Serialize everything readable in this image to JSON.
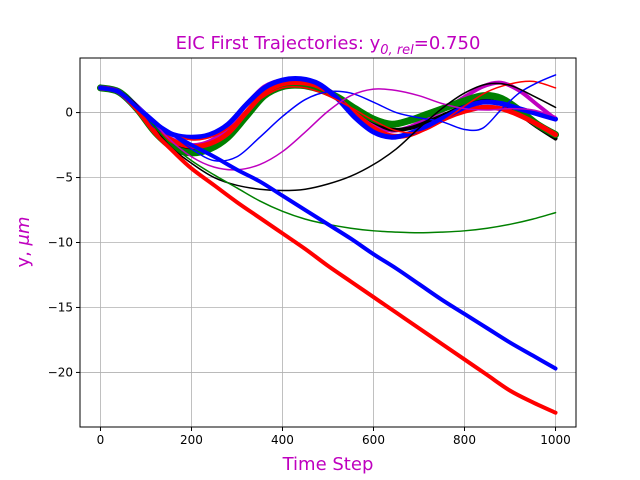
{
  "chart_data": {
    "type": "line",
    "title": "EIC First Trajectories: y",
    "title_subscript": "0, rel",
    "title_value": "=0.750",
    "xlabel": "Time Step",
    "ylabel_var": "y, ",
    "ylabel_unit": "μm",
    "label_color": "#bf00bf",
    "xlim": [
      -45,
      1045
    ],
    "ylim": [
      -24.2,
      4.2
    ],
    "xticks": [
      0,
      200,
      400,
      600,
      800,
      1000
    ],
    "yticks": [
      -20,
      -15,
      -10,
      -5,
      0
    ],
    "xtick_labels": [
      "0",
      "200",
      "400",
      "600",
      "800",
      "1000"
    ],
    "ytick_labels": [
      "−20",
      "−15",
      "−10",
      "−5",
      "0"
    ],
    "grid": true,
    "series": [
      {
        "color": "#bf00bf",
        "width": 4,
        "points": [
          [
            0,
            1.9
          ],
          [
            40,
            1.6
          ],
          [
            80,
            0.3
          ],
          [
            120,
            -1.2
          ],
          [
            160,
            -2.1
          ],
          [
            200,
            -2.5
          ],
          [
            240,
            -2.2
          ],
          [
            280,
            -1.2
          ],
          [
            320,
            0.6
          ],
          [
            360,
            2.0
          ],
          [
            400,
            2.5
          ],
          [
            440,
            2.6
          ],
          [
            480,
            2.2
          ],
          [
            520,
            1.2
          ],
          [
            560,
            0.0
          ],
          [
            600,
            -1.0
          ],
          [
            640,
            -1.4
          ],
          [
            680,
            -1.1
          ],
          [
            720,
            -0.4
          ],
          [
            760,
            0.3
          ],
          [
            800,
            1.2
          ],
          [
            840,
            2.0
          ],
          [
            880,
            2.3
          ],
          [
            920,
            1.7
          ],
          [
            960,
            0.6
          ],
          [
            1000,
            -0.5
          ]
        ]
      },
      {
        "color": "#000000",
        "width": 4,
        "points": [
          [
            0,
            1.9
          ],
          [
            40,
            1.6
          ],
          [
            80,
            0.3
          ],
          [
            120,
            -1.3
          ],
          [
            160,
            -2.3
          ],
          [
            200,
            -2.8
          ],
          [
            240,
            -2.6
          ],
          [
            280,
            -1.8
          ],
          [
            320,
            -0.2
          ],
          [
            360,
            1.4
          ],
          [
            400,
            2.2
          ],
          [
            440,
            2.4
          ],
          [
            480,
            2.1
          ],
          [
            520,
            1.3
          ],
          [
            560,
            0.3
          ],
          [
            600,
            -0.7
          ],
          [
            640,
            -1.3
          ],
          [
            680,
            -1.2
          ],
          [
            720,
            -0.7
          ],
          [
            760,
            -0.1
          ],
          [
            800,
            0.5
          ],
          [
            840,
            0.9
          ],
          [
            880,
            0.7
          ],
          [
            920,
            -0.1
          ],
          [
            960,
            -1.1
          ],
          [
            1000,
            -2.0
          ]
        ]
      },
      {
        "color": "#008000",
        "width": 7,
        "points": [
          [
            0,
            1.9
          ],
          [
            40,
            1.6
          ],
          [
            80,
            0.3
          ],
          [
            120,
            -1.5
          ],
          [
            160,
            -2.7
          ],
          [
            200,
            -3.1
          ],
          [
            240,
            -2.8
          ],
          [
            280,
            -1.9
          ],
          [
            320,
            -0.3
          ],
          [
            360,
            1.3
          ],
          [
            400,
            2.0
          ],
          [
            440,
            2.1
          ],
          [
            480,
            1.8
          ],
          [
            520,
            1.2
          ],
          [
            560,
            0.3
          ],
          [
            600,
            -0.5
          ],
          [
            640,
            -0.9
          ],
          [
            680,
            -0.6
          ],
          [
            720,
            -0.1
          ],
          [
            760,
            0.4
          ],
          [
            800,
            0.9
          ],
          [
            840,
            1.3
          ],
          [
            880,
            1.1
          ],
          [
            920,
            0.2
          ],
          [
            960,
            -0.9
          ],
          [
            1000,
            -1.7
          ]
        ]
      },
      {
        "color": "#ff0000",
        "width": 5,
        "points": [
          [
            0,
            1.9
          ],
          [
            40,
            1.6
          ],
          [
            80,
            0.3
          ],
          [
            120,
            -1.2
          ],
          [
            160,
            -2.2
          ],
          [
            200,
            -2.6
          ],
          [
            240,
            -2.4
          ],
          [
            280,
            -1.6
          ],
          [
            320,
            0.0
          ],
          [
            360,
            1.5
          ],
          [
            400,
            2.2
          ],
          [
            440,
            2.3
          ],
          [
            480,
            2.0
          ],
          [
            520,
            1.1
          ],
          [
            560,
            -0.1
          ],
          [
            600,
            -1.2
          ],
          [
            640,
            -1.8
          ],
          [
            680,
            -1.7
          ],
          [
            720,
            -1.1
          ],
          [
            760,
            -0.4
          ],
          [
            800,
            0.1
          ],
          [
            840,
            0.4
          ],
          [
            880,
            0.3
          ],
          [
            920,
            -0.2
          ],
          [
            960,
            -0.9
          ],
          [
            1000,
            -1.7
          ]
        ]
      },
      {
        "color": "#0000ff",
        "width": 5,
        "points": [
          [
            0,
            1.9
          ],
          [
            40,
            1.6
          ],
          [
            80,
            0.3
          ],
          [
            120,
            -1.0
          ],
          [
            160,
            -1.7
          ],
          [
            200,
            -1.9
          ],
          [
            240,
            -1.7
          ],
          [
            280,
            -0.9
          ],
          [
            320,
            0.6
          ],
          [
            360,
            1.9
          ],
          [
            400,
            2.5
          ],
          [
            440,
            2.6
          ],
          [
            480,
            2.2
          ],
          [
            520,
            1.1
          ],
          [
            560,
            -0.4
          ],
          [
            600,
            -1.5
          ],
          [
            640,
            -1.9
          ],
          [
            680,
            -1.6
          ],
          [
            720,
            -1.0
          ],
          [
            760,
            -0.3
          ],
          [
            800,
            0.4
          ],
          [
            840,
            0.8
          ],
          [
            880,
            0.7
          ],
          [
            920,
            0.3
          ],
          [
            960,
            -0.1
          ],
          [
            1000,
            -0.5
          ]
        ]
      },
      {
        "color": "#ff0000",
        "width": 1.5,
        "points": [
          [
            0,
            1.9
          ],
          [
            50,
            1.5
          ],
          [
            100,
            -0.2
          ],
          [
            150,
            -1.5
          ],
          [
            200,
            -2.1
          ],
          [
            250,
            -1.8
          ],
          [
            300,
            -0.7
          ],
          [
            350,
            1.0
          ],
          [
            400,
            1.9
          ],
          [
            450,
            1.9
          ],
          [
            500,
            1.3
          ],
          [
            550,
            0.4
          ],
          [
            600,
            -0.6
          ],
          [
            650,
            -1.4
          ],
          [
            700,
            -1.5
          ],
          [
            750,
            -0.7
          ],
          [
            800,
            0.5
          ],
          [
            850,
            1.6
          ],
          [
            900,
            2.2
          ],
          [
            950,
            2.4
          ],
          [
            1000,
            1.9
          ]
        ]
      },
      {
        "color": "#0000ff",
        "width": 1.5,
        "points": [
          [
            0,
            1.9
          ],
          [
            50,
            1.5
          ],
          [
            100,
            0.0
          ],
          [
            150,
            -1.5
          ],
          [
            200,
            -2.8
          ],
          [
            250,
            -3.7
          ],
          [
            300,
            -3.4
          ],
          [
            350,
            -1.9
          ],
          [
            400,
            -0.3
          ],
          [
            450,
            1.0
          ],
          [
            500,
            1.6
          ],
          [
            550,
            1.5
          ],
          [
            600,
            0.8
          ],
          [
            650,
            0.0
          ],
          [
            700,
            -0.4
          ],
          [
            750,
            -0.7
          ],
          [
            800,
            -1.3
          ],
          [
            840,
            -1.2
          ],
          [
            880,
            0.2
          ],
          [
            920,
            1.5
          ],
          [
            960,
            2.3
          ],
          [
            1000,
            2.9
          ]
        ]
      },
      {
        "color": "#bf00bf",
        "width": 1.5,
        "points": [
          [
            0,
            1.9
          ],
          [
            50,
            1.5
          ],
          [
            100,
            -0.1
          ],
          [
            150,
            -2.0
          ],
          [
            200,
            -3.4
          ],
          [
            250,
            -4.2
          ],
          [
            300,
            -4.4
          ],
          [
            350,
            -4.0
          ],
          [
            400,
            -3.0
          ],
          [
            450,
            -1.5
          ],
          [
            500,
            0.1
          ],
          [
            550,
            1.3
          ],
          [
            600,
            1.8
          ],
          [
            650,
            1.7
          ],
          [
            700,
            1.3
          ],
          [
            750,
            0.7
          ],
          [
            800,
            0.3
          ],
          [
            850,
            0.2
          ],
          [
            900,
            0.3
          ],
          [
            950,
            0.2
          ],
          [
            1000,
            -0.3
          ]
        ]
      },
      {
        "color": "#000000",
        "width": 1.5,
        "points": [
          [
            0,
            1.9
          ],
          [
            50,
            1.5
          ],
          [
            100,
            -0.2
          ],
          [
            150,
            -2.5
          ],
          [
            200,
            -3.9
          ],
          [
            250,
            -5.0
          ],
          [
            300,
            -5.6
          ],
          [
            350,
            -5.9
          ],
          [
            400,
            -6.0
          ],
          [
            450,
            -5.9
          ],
          [
            500,
            -5.5
          ],
          [
            550,
            -4.9
          ],
          [
            600,
            -4.0
          ],
          [
            650,
            -2.8
          ],
          [
            700,
            -1.2
          ],
          [
            750,
            0.3
          ],
          [
            800,
            1.5
          ],
          [
            850,
            2.2
          ],
          [
            900,
            2.1
          ],
          [
            950,
            1.3
          ],
          [
            1000,
            0.4
          ]
        ]
      },
      {
        "color": "#008000",
        "width": 1.5,
        "points": [
          [
            0,
            1.9
          ],
          [
            50,
            1.5
          ],
          [
            100,
            -0.3
          ],
          [
            150,
            -2.3
          ],
          [
            200,
            -3.7
          ],
          [
            250,
            -4.8
          ],
          [
            300,
            -5.8
          ],
          [
            350,
            -6.8
          ],
          [
            400,
            -7.6
          ],
          [
            450,
            -8.2
          ],
          [
            500,
            -8.6
          ],
          [
            550,
            -8.9
          ],
          [
            600,
            -9.1
          ],
          [
            650,
            -9.2
          ],
          [
            700,
            -9.25
          ],
          [
            750,
            -9.2
          ],
          [
            800,
            -9.1
          ],
          [
            850,
            -8.9
          ],
          [
            900,
            -8.6
          ],
          [
            950,
            -8.2
          ],
          [
            1000,
            -7.7
          ]
        ]
      },
      {
        "color": "#ff0000",
        "width": 4,
        "points": [
          [
            0,
            1.9
          ],
          [
            40,
            1.6
          ],
          [
            80,
            0.2
          ],
          [
            120,
            -1.6
          ],
          [
            160,
            -3.0
          ],
          [
            200,
            -4.3
          ],
          [
            250,
            -5.6
          ],
          [
            300,
            -6.9
          ],
          [
            350,
            -8.1
          ],
          [
            400,
            -9.3
          ],
          [
            450,
            -10.5
          ],
          [
            500,
            -11.8
          ],
          [
            550,
            -13.0
          ],
          [
            600,
            -14.2
          ],
          [
            650,
            -15.4
          ],
          [
            700,
            -16.6
          ],
          [
            750,
            -17.8
          ],
          [
            800,
            -19.0
          ],
          [
            850,
            -20.2
          ],
          [
            900,
            -21.4
          ],
          [
            950,
            -22.3
          ],
          [
            1000,
            -23.1
          ]
        ]
      },
      {
        "color": "#0000ff",
        "width": 4,
        "points": [
          [
            0,
            1.9
          ],
          [
            40,
            1.6
          ],
          [
            80,
            0.4
          ],
          [
            120,
            -0.8
          ],
          [
            160,
            -1.7
          ],
          [
            200,
            -2.5
          ],
          [
            250,
            -3.4
          ],
          [
            300,
            -4.4
          ],
          [
            350,
            -5.3
          ],
          [
            400,
            -6.4
          ],
          [
            450,
            -7.5
          ],
          [
            500,
            -8.6
          ],
          [
            550,
            -9.7
          ],
          [
            600,
            -10.9
          ],
          [
            650,
            -12.0
          ],
          [
            700,
            -13.2
          ],
          [
            750,
            -14.4
          ],
          [
            800,
            -15.5
          ],
          [
            850,
            -16.6
          ],
          [
            900,
            -17.7
          ],
          [
            950,
            -18.7
          ],
          [
            1000,
            -19.7
          ]
        ]
      }
    ]
  }
}
